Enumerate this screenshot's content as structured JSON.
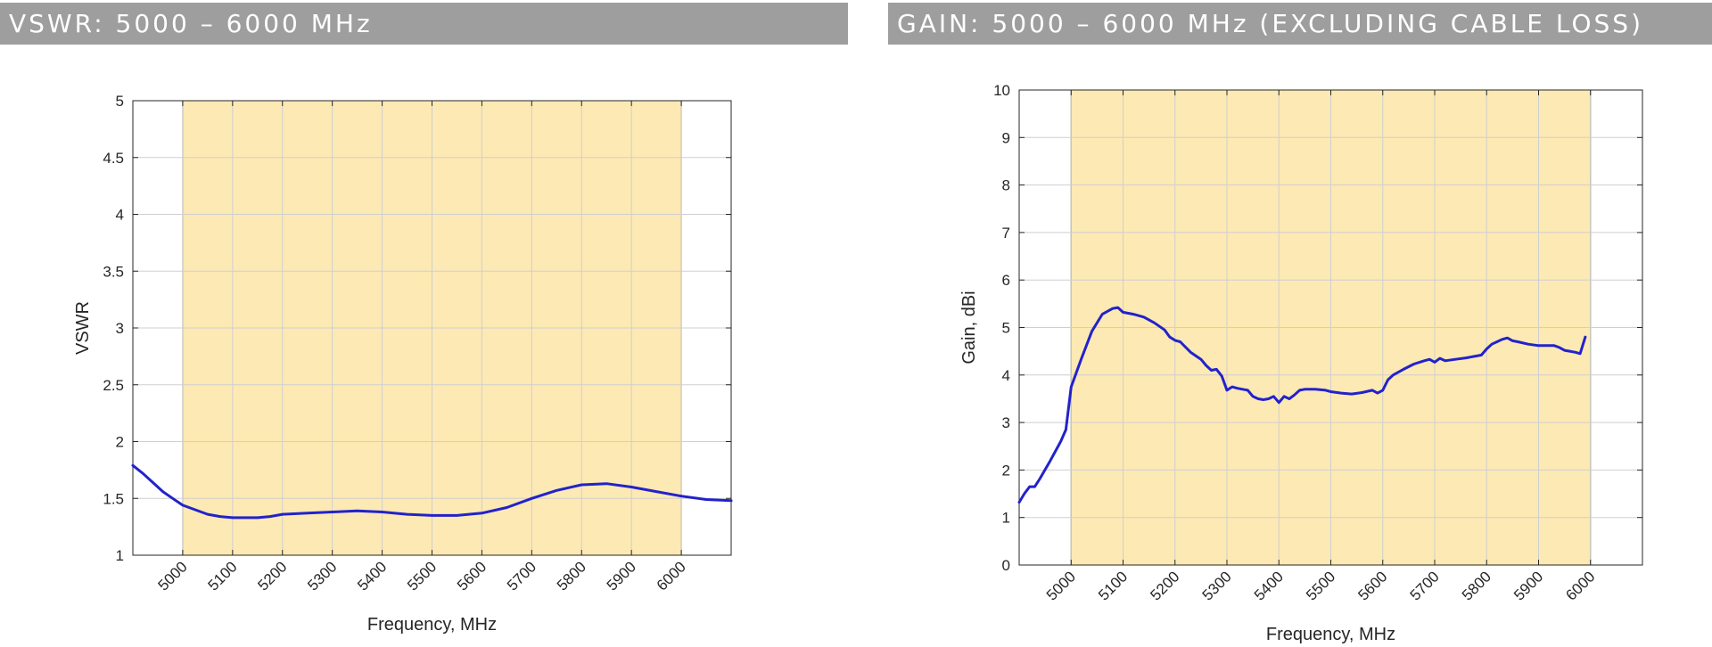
{
  "charts_header": {
    "left_title": "VSWR: 5000 – 6000 MHz",
    "right_title": "GAIN: 5000 – 6000 MHz (EXCLUDING CABLE LOSS)"
  },
  "colors": {
    "banner": "#9e9e9e",
    "band_fill": "#fde9b3",
    "line": "#2222cc",
    "grid": "#cfcfcf"
  },
  "chart_data": [
    {
      "type": "line",
      "xlabel": "Frequency, MHz",
      "ylabel": "VSWR",
      "xlim": [
        4900,
        6100
      ],
      "ylim": [
        1,
        5
      ],
      "x_ticks": [
        "5000",
        "5100",
        "5200",
        "5300",
        "5400",
        "5500",
        "5600",
        "5700",
        "5800",
        "5900",
        "6000"
      ],
      "y_ticks": [
        "1",
        "1.5",
        "2",
        "2.5",
        "3",
        "3.5",
        "4",
        "4.5",
        "5"
      ],
      "highlight_band": [
        5000,
        6000
      ],
      "grid": true,
      "series": [
        {
          "x": [
            4900,
            4920,
            4940,
            4960,
            4980,
            5000,
            5025,
            5050,
            5075,
            5100,
            5125,
            5150,
            5175,
            5200,
            5250,
            5300,
            5350,
            5400,
            5450,
            5500,
            5550,
            5600,
            5650,
            5700,
            5750,
            5800,
            5850,
            5900,
            5950,
            6000,
            6050,
            6100
          ],
          "y": [
            1.79,
            1.72,
            1.64,
            1.56,
            1.5,
            1.44,
            1.4,
            1.36,
            1.34,
            1.33,
            1.33,
            1.33,
            1.34,
            1.36,
            1.37,
            1.38,
            1.39,
            1.38,
            1.36,
            1.35,
            1.35,
            1.37,
            1.42,
            1.5,
            1.57,
            1.62,
            1.63,
            1.6,
            1.56,
            1.52,
            1.49,
            1.48
          ]
        }
      ]
    },
    {
      "type": "line",
      "xlabel": "Frequency, MHz",
      "ylabel": "Gain, dBi",
      "xlim": [
        4900,
        6100
      ],
      "ylim": [
        0,
        10
      ],
      "x_ticks": [
        "5000",
        "5100",
        "5200",
        "5300",
        "5400",
        "5500",
        "5600",
        "5700",
        "5800",
        "5900",
        "6000"
      ],
      "y_ticks": [
        "0",
        "1",
        "2",
        "3",
        "4",
        "5",
        "6",
        "7",
        "8",
        "9",
        "10"
      ],
      "highlight_band": [
        5000,
        6000
      ],
      "grid": true,
      "series": [
        {
          "x": [
            4900,
            4910,
            4920,
            4930,
            4940,
            4960,
            4980,
            4990,
            5000,
            5020,
            5040,
            5060,
            5080,
            5090,
            5100,
            5120,
            5140,
            5160,
            5180,
            5190,
            5200,
            5210,
            5230,
            5250,
            5260,
            5270,
            5280,
            5290,
            5300,
            5310,
            5320,
            5330,
            5340,
            5350,
            5360,
            5370,
            5380,
            5390,
            5400,
            5410,
            5420,
            5430,
            5440,
            5450,
            5470,
            5490,
            5500,
            5520,
            5540,
            5560,
            5580,
            5590,
            5600,
            5610,
            5620,
            5640,
            5660,
            5680,
            5690,
            5700,
            5710,
            5720,
            5740,
            5760,
            5780,
            5790,
            5800,
            5810,
            5820,
            5830,
            5840,
            5850,
            5860,
            5880,
            5900,
            5910,
            5920,
            5930,
            5940,
            5950,
            5960,
            5970,
            5980,
            5990
          ],
          "y": [
            1.32,
            1.5,
            1.65,
            1.65,
            1.82,
            2.2,
            2.6,
            2.85,
            3.75,
            4.35,
            4.92,
            5.28,
            5.4,
            5.42,
            5.32,
            5.28,
            5.22,
            5.1,
            4.95,
            4.8,
            4.73,
            4.7,
            4.48,
            4.33,
            4.2,
            4.1,
            4.12,
            3.98,
            3.68,
            3.75,
            3.72,
            3.7,
            3.68,
            3.55,
            3.5,
            3.48,
            3.5,
            3.55,
            3.42,
            3.55,
            3.5,
            3.58,
            3.68,
            3.7,
            3.7,
            3.68,
            3.65,
            3.62,
            3.6,
            3.63,
            3.68,
            3.62,
            3.68,
            3.9,
            4.0,
            4.12,
            4.23,
            4.3,
            4.33,
            4.27,
            4.35,
            4.3,
            4.33,
            4.36,
            4.4,
            4.42,
            4.55,
            4.65,
            4.7,
            4.75,
            4.78,
            4.72,
            4.7,
            4.65,
            4.62,
            4.62,
            4.62,
            4.62,
            4.58,
            4.52,
            4.5,
            4.48,
            4.45,
            4.8
          ]
        }
      ]
    }
  ]
}
